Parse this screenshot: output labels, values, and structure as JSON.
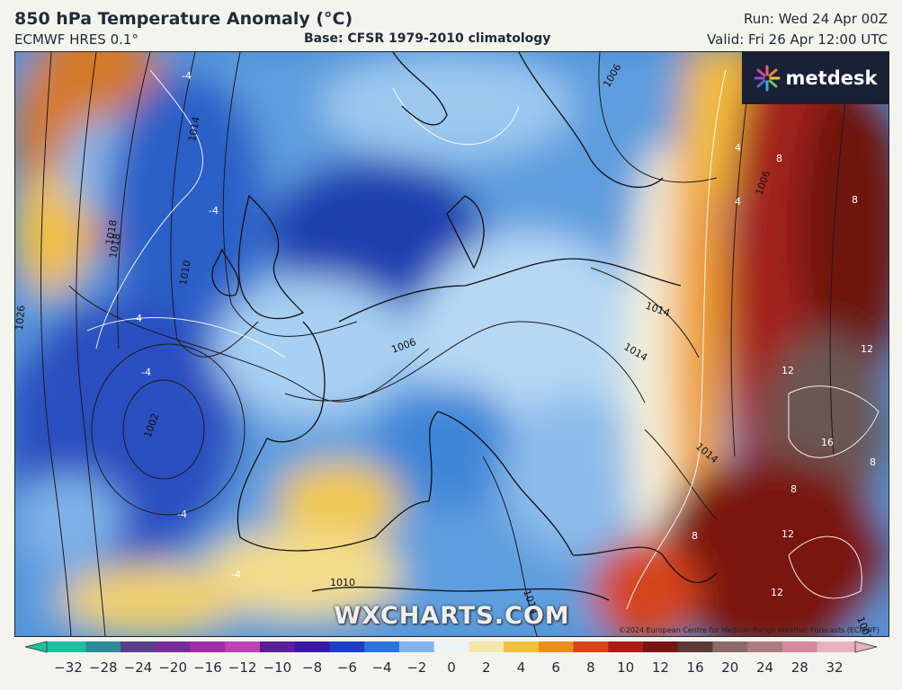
{
  "header": {
    "title": "850 hPa Temperature Anomaly (°C)",
    "model": "ECMWF HRES 0.1°",
    "base": "Base: CFSR 1979-2010 climatology",
    "run": "Run: Wed 24 Apr 00Z",
    "valid": "Valid: Fri 26 Apr 12:00 UTC"
  },
  "logo": {
    "text": "metdesk",
    "icon": "sparkle-burst-icon"
  },
  "watermark": "WXCHARTS.COM",
  "copyright": "©2024 European Centre for Medium-Range Weather Forecasts (ECMWF)",
  "colorbar": {
    "ticks": [
      "−32",
      "−28",
      "−24",
      "−20",
      "−16",
      "−12",
      "−10",
      "−8",
      "−6",
      "−4",
      "−2",
      "0",
      "2",
      "4",
      "6",
      "8",
      "10",
      "12",
      "16",
      "20",
      "24",
      "28",
      "32"
    ],
    "colors": [
      "#1fbfa0",
      "#2a8c9a",
      "#5a3f8c",
      "#7a2c9a",
      "#a12ca8",
      "#c040b8",
      "#5a1e9a",
      "#3a18a0",
      "#1b3fc0",
      "#2b74d8",
      "#7db6ec",
      "#eef3f8",
      "#f3e7a8",
      "#f2c040",
      "#ee8a1e",
      "#d6441a",
      "#a81e14",
      "#7a1410",
      "#5e3a36",
      "#8a6a66",
      "#b07a82",
      "#d48a9a",
      "#e8b0c0"
    ]
  },
  "map": {
    "isobar_labels": [
      "1014",
      "1018",
      "1010",
      "1026",
      "1006",
      "1006",
      "1014",
      "1014",
      "1018",
      "1002",
      "1014",
      "1010",
      "1014",
      "1006",
      "1002"
    ],
    "anomaly_labels": [
      "-4",
      "-4",
      "-4",
      "-4",
      "-4",
      "-4",
      "4",
      "4",
      "8",
      "8",
      "12",
      "12",
      "12",
      "16",
      "8",
      "8",
      "12",
      "8"
    ]
  }
}
